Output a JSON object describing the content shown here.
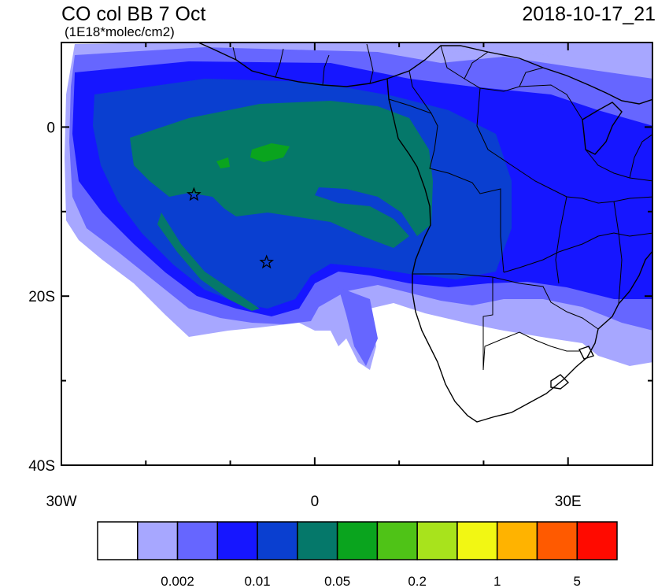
{
  "map": {
    "title": "CO col BB 7 Oct",
    "units": "(1E18*molec/cm2)",
    "timestamp": "2018-10-17_21",
    "lat_ticks": [
      {
        "lat": 0,
        "label": "0"
      },
      {
        "lat": -20,
        "label": "20S"
      },
      {
        "lat": -40,
        "label": "40S"
      }
    ],
    "lon_ticks": [
      {
        "lon": -30,
        "label": "30W"
      },
      {
        "lon": 0,
        "label": "0"
      },
      {
        "lon": 30,
        "label": "30E"
      }
    ],
    "extent": {
      "lon_min": -30,
      "lon_max": 40,
      "lat_min": -40,
      "lat_max": 10
    },
    "source_markers": [
      {
        "lon": -14.3,
        "lat": -8.0,
        "symbol": "star"
      },
      {
        "lon": -5.7,
        "lat": -16.0,
        "symbol": "star"
      }
    ]
  },
  "colorbar": {
    "colors": [
      "#ffffff",
      "#a7a7ff",
      "#6666ff",
      "#1616ff",
      "#0a3fd0",
      "#05786a",
      "#0aa41e",
      "#4fc317",
      "#a8e31c",
      "#f2f713",
      "#ffb300",
      "#ff5a00",
      "#ff0a00"
    ],
    "labels": [
      {
        "after_box": 2,
        "text": "0.002"
      },
      {
        "after_box": 4,
        "text": "0.01"
      },
      {
        "after_box": 6,
        "text": "0.05"
      },
      {
        "after_box": 8,
        "text": "0.2"
      },
      {
        "after_box": 10,
        "text": "1"
      },
      {
        "after_box": 12,
        "text": "5"
      }
    ]
  }
}
